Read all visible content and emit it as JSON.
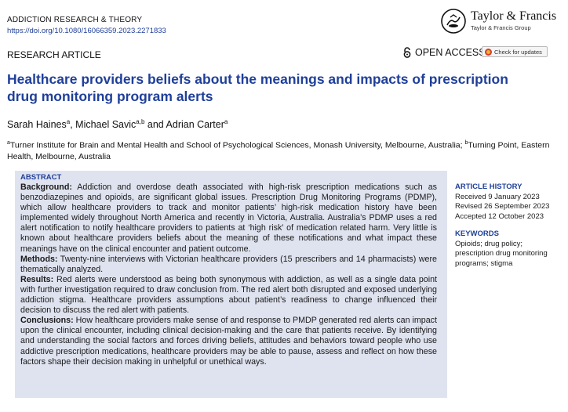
{
  "header": {
    "journal": "ADDICTION RESEARCH & THEORY",
    "doi": "https://doi.org/10.1080/16066359.2023.2271833",
    "publisher_name": "Taylor & Francis",
    "publisher_group": "Taylor & Francis Group",
    "logo_icon": "taylor-francis-logo-icon"
  },
  "meta": {
    "article_type": "RESEARCH ARTICLE",
    "open_access": "OPEN ACCESS",
    "check_updates": "Check for updates"
  },
  "title": "Healthcare providers beliefs about the meanings and impacts of prescription drug monitoring program alerts",
  "authors": [
    {
      "name": "Sarah Haines",
      "aff": "a",
      "sep": ", "
    },
    {
      "name": "Michael Savic",
      "aff": "a,b",
      "sep": " and "
    },
    {
      "name": "Adrian Carter",
      "aff": "a",
      "sep": ""
    }
  ],
  "affiliations": [
    {
      "mark": "a",
      "text": "Turner Institute for Brain and Mental Health and School of Psychological Sciences, Monash University, Melbourne, Australia; "
    },
    {
      "mark": "b",
      "text": "Turning Point, Eastern Health, Melbourne, Australia"
    }
  ],
  "abstract": {
    "heading": "ABSTRACT",
    "sections": [
      {
        "label": "Background:",
        "text": " Addiction and overdose death associated with high-risk prescription medications such as benzodiazepines and opioids, are significant global issues. Prescription Drug Monitoring Programs (PDMP), which allow healthcare providers to track and monitor patients’ high-risk medication history have been implemented widely throughout North America and recently in Victoria, Australia. Australia’s PDMP uses a red alert notification to notify healthcare providers to patients at ‘high risk’ of medication related harm. Very little is known about healthcare providers beliefs about the meaning of these notifications and what impact these meanings have on the clinical encounter and patient outcome."
      },
      {
        "label": "Methods:",
        "text": " Twenty-nine interviews with Victorian healthcare providers (15 prescribers and 14 pharmacists) were thematically analyzed."
      },
      {
        "label": "Results:",
        "text": " Red alerts were understood as being both synonymous with addiction, as well as a single data point with further investigation required to draw conclusion from. The red alert both disrupted and exposed underlying addiction stigma. Healthcare providers assumptions about patient’s readiness to change influenced their decision to discuss the red alert with patients."
      },
      {
        "label": "Conclusions:",
        "text": " How healthcare providers make sense of and response to PMDP generated red alerts can impact upon the clinical encounter, including clinical decision-making and the care that patients receive. By identifying and understanding the social factors and forces driving beliefs, attitudes and behaviors toward people who use addictive prescription medications, healthcare providers may be able to pause, assess and reflect on how these factors shape their decision making in unhelpful or unethical ways."
      }
    ]
  },
  "article_history": {
    "heading": "ARTICLE HISTORY",
    "received": "Received 9 January 2023",
    "revised": "Revised 26 September 2023",
    "accepted": "Accepted 12 October 2023"
  },
  "keywords": {
    "heading": "KEYWORDS",
    "text": "Opioids; drug policy; prescription drug monitoring programs; stigma"
  }
}
